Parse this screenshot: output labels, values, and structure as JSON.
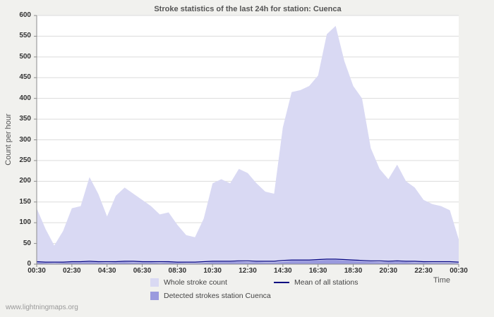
{
  "page": {
    "watermark": "www.lightningmaps.org",
    "background": "#f1f1ee"
  },
  "colors": {
    "grid": "#dcdcdc",
    "axis": "#8c8c8c",
    "plot_bg": "#ffffff",
    "title_text": "#555555",
    "tick_text": "#333333"
  },
  "chart_data": {
    "type": "area",
    "title": "Stroke statistics of the last 24h for station: Cuenca",
    "ylabel": "Count per hour",
    "xlabel": "Time",
    "ylim": [
      0,
      600
    ],
    "yticks": [
      0,
      50,
      100,
      150,
      200,
      250,
      300,
      350,
      400,
      450,
      500,
      550,
      600
    ],
    "x_ticklabels": [
      "00:30",
      "02:30",
      "04:30",
      "06:30",
      "08:30",
      "10:30",
      "12:30",
      "14:30",
      "16:30",
      "18:30",
      "20:30",
      "22:30",
      "00:30"
    ],
    "x_step_minutes": 30,
    "grid": "horizontal",
    "legend_position": "bottom",
    "series": [
      {
        "name": "Whole stroke count",
        "style": "area",
        "color": "#d9d9f3",
        "values": [
          135,
          85,
          45,
          80,
          135,
          140,
          210,
          170,
          115,
          165,
          185,
          170,
          155,
          140,
          120,
          125,
          95,
          70,
          65,
          110,
          195,
          205,
          195,
          230,
          220,
          195,
          175,
          170,
          330,
          415,
          420,
          430,
          455,
          555,
          575,
          490,
          430,
          400,
          280,
          230,
          205,
          240,
          200,
          185,
          155,
          145,
          140,
          130,
          60
        ]
      },
      {
        "name": "Detected strokes station Cuenca",
        "style": "area",
        "color": "#9a9ade",
        "values": [
          4,
          3,
          2,
          3,
          4,
          4,
          5,
          4,
          3,
          4,
          5,
          4,
          4,
          4,
          3,
          4,
          3,
          2,
          2,
          3,
          5,
          5,
          5,
          6,
          5,
          5,
          4,
          4,
          6,
          8,
          8,
          8,
          9,
          10,
          10,
          9,
          8,
          7,
          6,
          5,
          5,
          6,
          5,
          4,
          4,
          3,
          3,
          3,
          2
        ]
      },
      {
        "name": "Mean of all stations",
        "style": "line",
        "color": "#000080",
        "values": [
          6,
          5,
          5,
          5,
          6,
          6,
          7,
          6,
          6,
          6,
          7,
          7,
          6,
          6,
          6,
          6,
          5,
          5,
          5,
          6,
          7,
          7,
          7,
          8,
          8,
          7,
          7,
          7,
          9,
          10,
          10,
          10,
          11,
          12,
          12,
          11,
          10,
          9,
          8,
          8,
          7,
          8,
          7,
          7,
          6,
          6,
          6,
          6,
          5
        ]
      }
    ]
  }
}
